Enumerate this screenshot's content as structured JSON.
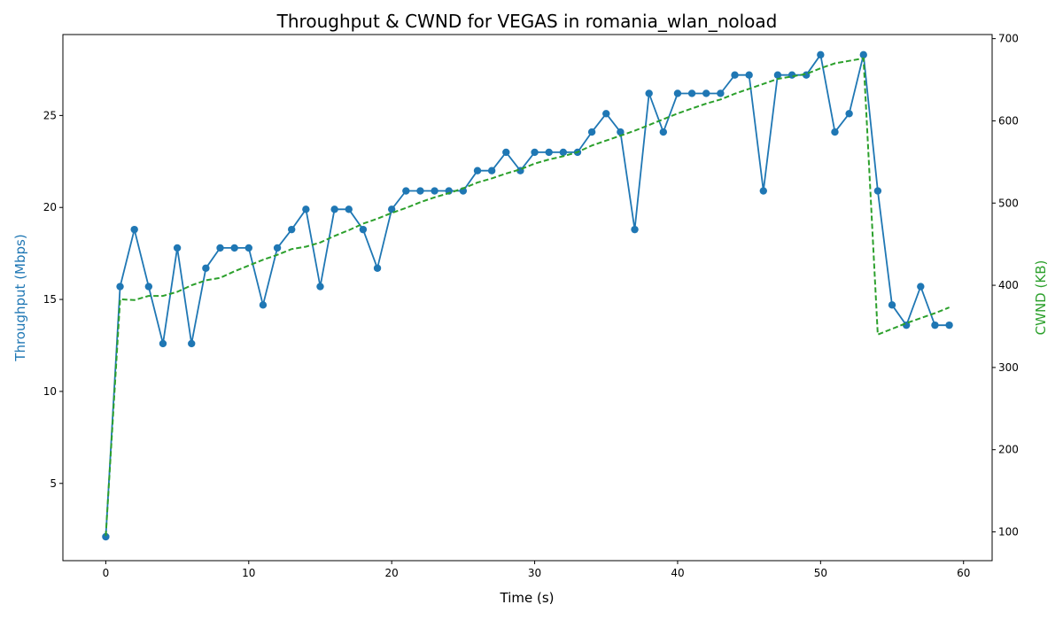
{
  "chart_data": {
    "type": "line",
    "title": "Throughput & CWND for VEGAS in romania_wlan_noload",
    "xlabel": "Time (s)",
    "ylabel_left": "Throughput (Mbps)",
    "ylabel_right": "CWND (KB)",
    "xlim": [
      -3,
      62
    ],
    "ylim_left": [
      0.8,
      29.4
    ],
    "ylim_right": [
      65,
      705
    ],
    "x_ticks": [
      0,
      10,
      20,
      30,
      40,
      50,
      60
    ],
    "y_ticks_left": [
      5,
      10,
      15,
      20,
      25
    ],
    "y_ticks_right": [
      100,
      200,
      300,
      400,
      500,
      600,
      700
    ],
    "grid": false,
    "legend": "none",
    "series": [
      {
        "axis": "left",
        "color": "#1f77b4",
        "style": "solid-markers",
        "x": [
          0,
          1,
          2,
          3,
          4,
          5,
          6,
          7,
          8,
          9,
          10,
          11,
          12,
          13,
          14,
          15,
          16,
          17,
          18,
          19,
          20,
          21,
          22,
          23,
          24,
          25,
          26,
          27,
          28,
          29,
          30,
          31,
          32,
          33,
          34,
          35,
          36,
          37,
          38,
          39,
          40,
          41,
          42,
          43,
          44,
          45,
          46,
          47,
          48,
          49,
          50,
          51,
          52,
          53,
          54,
          55,
          56,
          57,
          58,
          59
        ],
        "values": [
          2.1,
          15.7,
          18.8,
          15.7,
          12.6,
          17.8,
          12.6,
          16.7,
          17.8,
          17.8,
          17.8,
          14.7,
          17.8,
          18.8,
          19.9,
          15.7,
          19.9,
          19.9,
          18.8,
          16.7,
          19.9,
          20.9,
          20.9,
          20.9,
          20.9,
          20.9,
          22.0,
          22.0,
          23.0,
          22.0,
          23.0,
          23.0,
          23.0,
          23.0,
          24.1,
          25.1,
          24.1,
          18.8,
          26.2,
          24.1,
          26.2,
          26.2,
          26.2,
          26.2,
          27.2,
          27.2,
          20.9,
          27.2,
          27.2,
          27.2,
          28.3,
          24.1,
          25.1,
          28.3,
          20.9,
          14.7,
          13.6,
          15.7,
          13.6,
          13.6
        ]
      },
      {
        "axis": "right",
        "color": "#2ca02c",
        "style": "dashed",
        "x": [
          0,
          1,
          2,
          3,
          4,
          5,
          6,
          7,
          8,
          9,
          10,
          11,
          12,
          13,
          14,
          15,
          16,
          17,
          18,
          19,
          20,
          21,
          22,
          23,
          24,
          25,
          26,
          27,
          28,
          29,
          30,
          31,
          32,
          33,
          34,
          35,
          36,
          37,
          38,
          39,
          40,
          41,
          42,
          43,
          44,
          45,
          46,
          47,
          48,
          49,
          50,
          51,
          52,
          53,
          54,
          55,
          56,
          57,
          58,
          59
        ],
        "values": [
          95,
          383,
          382,
          387,
          387,
          392,
          400,
          406,
          409,
          417,
          424,
          431,
          437,
          444,
          447,
          452,
          460,
          467,
          475,
          481,
          488,
          494,
          501,
          507,
          512,
          518,
          525,
          530,
          536,
          541,
          548,
          553,
          557,
          562,
          570,
          576,
          582,
          588,
          595,
          602,
          609,
          615,
          621,
          626,
          633,
          639,
          645,
          651,
          654,
          657,
          664,
          670,
          673,
          676,
          340,
          347,
          354,
          360,
          366,
          373
        ]
      }
    ]
  }
}
